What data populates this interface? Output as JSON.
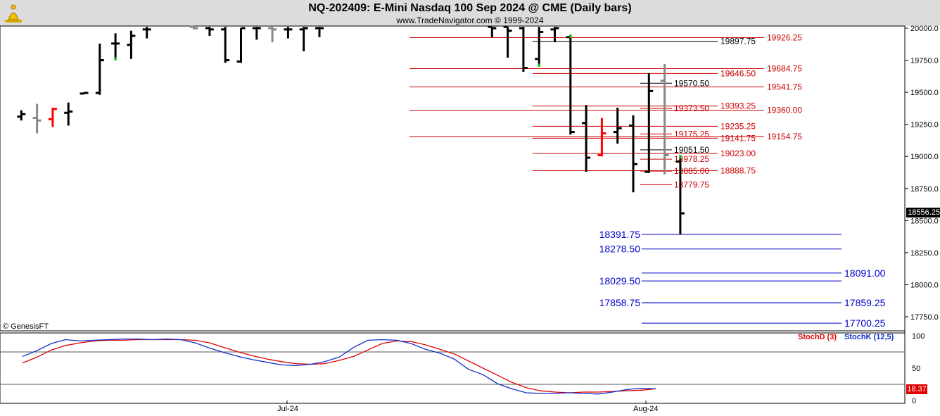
{
  "header": {
    "title": "NQ-202409:  E-Mini Nasdaq 100 Sep 2024 @ CME  (Daily bars)",
    "subtitle": "www.TradeNavigator.com © 1999-2024"
  },
  "copyright": "© GenesisFT",
  "price_tag": "18556.25",
  "stoch_tag": "18.37",
  "colors": {
    "up_bar": "#000000",
    "down_bar": "#000000",
    "gray_bar": "#888888",
    "red_bar": "#ff0000",
    "resistance": "#cc0000",
    "support": "#0000c8",
    "stoch_d": "#e00000",
    "stoch_k": "#1030c8"
  },
  "chart_data": [
    {
      "type": "bar",
      "subtype": "ohlc",
      "title": "NQ-202409:  E-Mini Nasdaq 100 Sep 2024 @ CME  (Daily bars)",
      "y_ticks": [
        "20000.0",
        "19750.0",
        "19500.0",
        "19250.0",
        "19000.0",
        "18750.0",
        "18500.0",
        "18250.0",
        "18000.0",
        "17750.0"
      ],
      "ylim": [
        17650,
        20010
      ],
      "x_ticks": [
        "Jul-24",
        "Aug-24"
      ],
      "bars": [
        {
          "i": 1,
          "o": 19310,
          "h": 19360,
          "l": 19280,
          "c": 19330,
          "color": "black"
        },
        {
          "i": 2,
          "o": 19300,
          "h": 19410,
          "l": 19180,
          "c": 19280,
          "color": "gray"
        },
        {
          "i": 3,
          "o": 19290,
          "h": 19380,
          "l": 19230,
          "c": 19370,
          "color": "red"
        },
        {
          "i": 4,
          "o": 19340,
          "h": 19420,
          "l": 19240,
          "c": 19350,
          "color": "black"
        },
        {
          "i": 5,
          "o": 19490,
          "h": 19500,
          "l": 19490,
          "c": 19495,
          "color": "black"
        },
        {
          "i": 6,
          "o": 19495,
          "h": 19880,
          "l": 19480,
          "c": 19750,
          "color": "black"
        },
        {
          "i": 7,
          "o": 19880,
          "h": 19960,
          "l": 19750,
          "c": 19880,
          "color": "black",
          "lowmark": "green"
        },
        {
          "i": 8,
          "o": 19870,
          "h": 19980,
          "l": 19760,
          "c": 19940,
          "color": "black"
        },
        {
          "i": 9,
          "o": 19990,
          "h": 20010,
          "l": 19920,
          "c": 19990,
          "color": "black"
        },
        {
          "i": 12,
          "o": 20010,
          "h": 20010,
          "l": 19990,
          "c": 20000,
          "color": "gray"
        },
        {
          "i": 13,
          "o": 20000,
          "h": 20010,
          "l": 19940,
          "c": 19990,
          "color": "black"
        },
        {
          "i": 14,
          "o": 19990,
          "h": 20010,
          "l": 19730,
          "c": 19750,
          "color": "black"
        },
        {
          "i": 15,
          "o": 19740,
          "h": 20000,
          "l": 19730,
          "c": 20000,
          "color": "black"
        },
        {
          "i": 16,
          "o": 20000,
          "h": 20010,
          "l": 19910,
          "c": 20000,
          "color": "black"
        },
        {
          "i": 17,
          "o": 20000,
          "h": 20010,
          "l": 19890,
          "c": 19990,
          "color": "gray"
        },
        {
          "i": 18,
          "o": 19990,
          "h": 20010,
          "l": 19920,
          "c": 19990,
          "color": "black"
        },
        {
          "i": 19,
          "o": 19990,
          "h": 20010,
          "l": 19820,
          "c": 20000,
          "color": "black"
        },
        {
          "i": 20,
          "o": 20000,
          "h": 20010,
          "l": 19930,
          "c": 20000,
          "color": "black"
        },
        {
          "i": 31,
          "o": 20010,
          "h": 20010,
          "l": 19930,
          "c": 20000,
          "color": "black"
        },
        {
          "i": 32,
          "o": 20010,
          "h": 20010,
          "l": 19770,
          "c": 19980,
          "color": "black"
        },
        {
          "i": 33,
          "o": 20000,
          "h": 20010,
          "l": 19660,
          "c": 19690,
          "color": "black"
        },
        {
          "i": 34,
          "o": 19760,
          "h": 20010,
          "l": 19700,
          "c": 19970,
          "color": "black",
          "lowmark": "green"
        },
        {
          "i": 35,
          "o": 19990,
          "h": 20010,
          "l": 19890,
          "c": 20000,
          "color": "black"
        },
        {
          "i": 36,
          "o": 19930,
          "h": 19950,
          "l": 19170,
          "c": 19190,
          "color": "black",
          "highmark": "green"
        },
        {
          "i": 37,
          "o": 19260,
          "h": 19400,
          "l": 18880,
          "c": 18990,
          "color": "black"
        },
        {
          "i": 38,
          "o": 19010,
          "h": 19300,
          "l": 19000,
          "c": 19180,
          "color": "red"
        },
        {
          "i": 39,
          "o": 19190,
          "h": 19380,
          "l": 19100,
          "c": 19220,
          "color": "black"
        },
        {
          "i": 40,
          "o": 19240,
          "h": 19320,
          "l": 18720,
          "c": 18940,
          "color": "black"
        },
        {
          "i": 41,
          "o": 18880,
          "h": 19650,
          "l": 18870,
          "c": 19510,
          "color": "black"
        },
        {
          "i": 42,
          "o": 19590,
          "h": 19720,
          "l": 18860,
          "c": 19010,
          "color": "gray"
        },
        {
          "i": 43,
          "o": 18960,
          "h": 19010,
          "l": 18390,
          "c": 18556.25,
          "color": "black",
          "highmark": "green"
        }
      ],
      "levels_red": [
        {
          "label": "19926.25",
          "value": 19926.25,
          "x0": "left",
          "label_pos": "far"
        },
        {
          "label": "19897.75",
          "value": 19897.75,
          "color": "black",
          "label_pos": "mid"
        },
        {
          "label": "19684.75",
          "value": 19684.75,
          "label_pos": "far"
        },
        {
          "label": "19646.50",
          "value": 19646.5,
          "label_pos": "mid"
        },
        {
          "label": "19570.50",
          "value": 19570.5,
          "color": "black",
          "label_pos": "near"
        },
        {
          "label": "19541.75",
          "value": 19541.75,
          "label_pos": "far"
        },
        {
          "label": "19393.25",
          "value": 19393.25,
          "label_pos": "mid"
        },
        {
          "label": "19373.50",
          "value": 19373.5,
          "label_pos": "near"
        },
        {
          "label": "19360.00",
          "value": 19360.0,
          "label_pos": "far"
        },
        {
          "label": "19235.25",
          "value": 19235.25,
          "label_pos": "mid"
        },
        {
          "label": "19175.25",
          "value": 19175.25,
          "label_pos": "near"
        },
        {
          "label": "19154.75",
          "value": 19154.75,
          "label_pos": "far"
        },
        {
          "label": "19141.75",
          "value": 19141.75,
          "label_pos": "mid"
        },
        {
          "label": "19051.50",
          "value": 19051.5,
          "color": "black",
          "label_pos": "near"
        },
        {
          "label": "19023.00",
          "value": 19023.0,
          "label_pos": "mid"
        },
        {
          "label": "18978.25",
          "value": 18978.25,
          "label_pos": "near"
        },
        {
          "label": "18888.75",
          "value": 18888.75,
          "label_pos": "mid"
        },
        {
          "label": "18885.00",
          "value": 18885.0,
          "label_pos": "near"
        },
        {
          "label": "18779.75",
          "value": 18779.75,
          "label_pos": "near"
        }
      ],
      "levels_blue": [
        {
          "label": "18391.75",
          "value": 18391.75,
          "label_side": "left"
        },
        {
          "label": "18278.50",
          "value": 18278.5,
          "label_side": "left"
        },
        {
          "label": "18091.00",
          "value": 18091.0,
          "label_side": "right"
        },
        {
          "label": "18029.50",
          "value": 18029.5,
          "label_side": "left"
        },
        {
          "label": "17858.75",
          "value": 17858.75,
          "label_side": "left"
        },
        {
          "label": "17859.25",
          "value": 17859.25,
          "label_side": "right"
        },
        {
          "label": "17700.25",
          "value": 17700.25,
          "label_side": "right"
        }
      ]
    },
    {
      "type": "line",
      "title": "Stochastic",
      "series": [
        {
          "name": "StochD (3)",
          "color": "#e00000",
          "values": [
            58,
            67,
            78,
            85,
            89,
            92,
            93,
            93,
            94,
            94,
            94,
            94,
            93,
            89,
            82,
            75,
            69,
            64,
            60,
            57,
            56,
            57,
            62,
            68,
            78,
            88,
            92,
            91,
            86,
            79,
            72,
            61,
            50,
            39,
            28,
            20,
            15,
            13,
            12,
            13,
            13,
            14,
            15,
            16,
            18
          ]
        },
        {
          "name": "StochK (12,5)",
          "color": "#1030c8",
          "values": [
            68,
            77,
            88,
            94,
            92,
            93,
            94,
            95,
            95,
            94,
            95,
            94,
            89,
            81,
            74,
            68,
            63,
            59,
            55,
            54,
            56,
            60,
            67,
            82,
            93,
            94,
            93,
            88,
            79,
            73,
            64,
            48,
            40,
            26,
            18,
            12,
            11,
            11,
            12,
            11,
            10,
            13,
            17,
            19,
            18
          ]
        }
      ],
      "y_ticks": [
        "100",
        "50",
        "0"
      ],
      "ylim": [
        0,
        100
      ]
    }
  ],
  "labels": {
    "stoch_d": "StochD (3)",
    "stoch_k": "StochK (12,5)",
    "x_jul": "Jul-24",
    "x_aug": "Aug-24"
  }
}
